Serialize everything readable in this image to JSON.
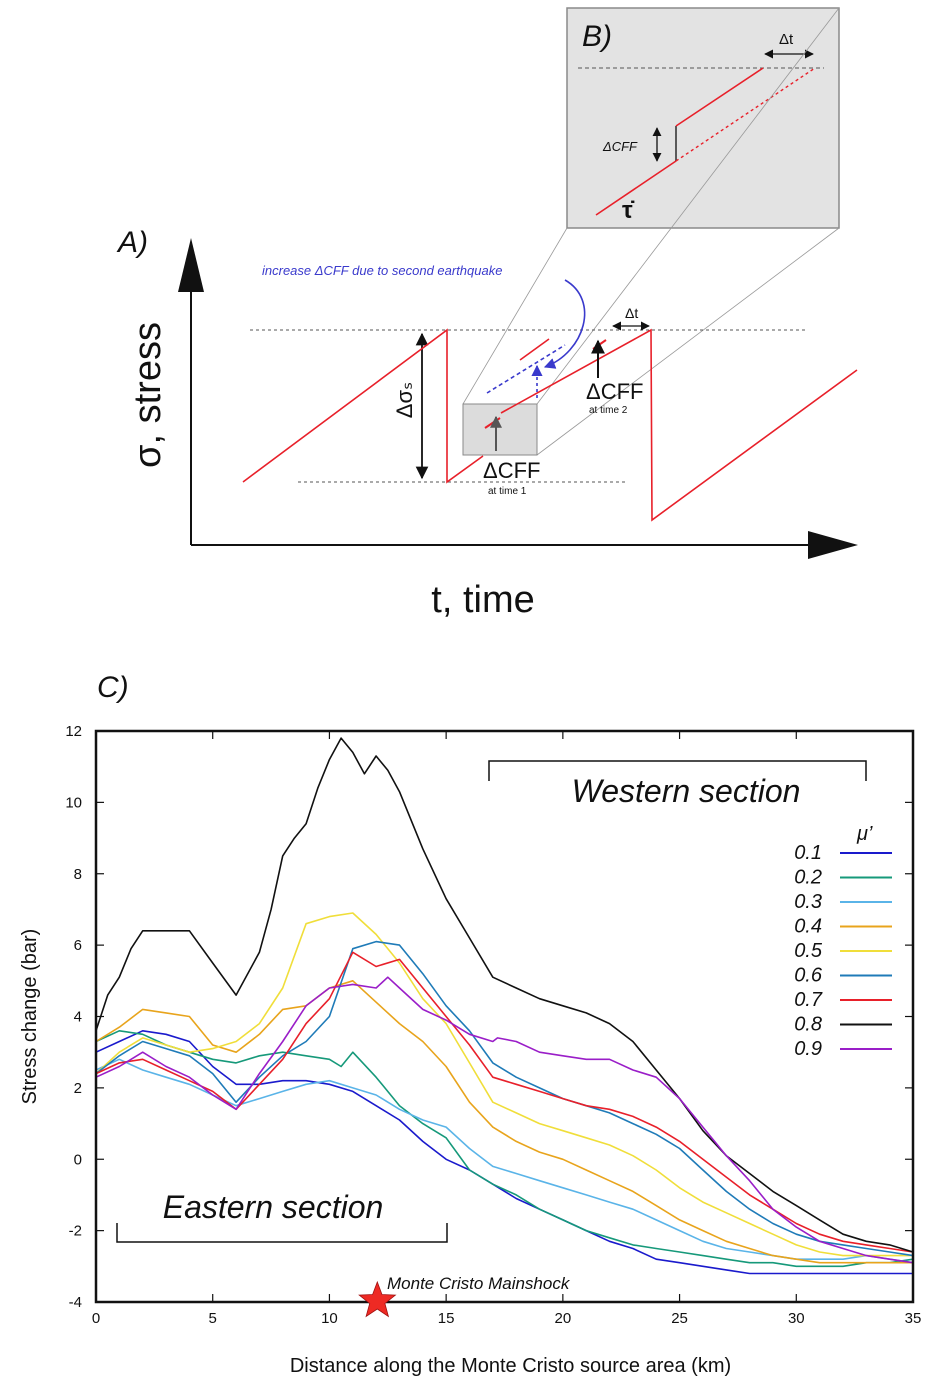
{
  "panel_a": {
    "label": "A)",
    "y_axis_label": "σ, stress",
    "x_axis_label": "t, time",
    "delta_sigma_label": "Δσₛ",
    "annotation_increase": "increase ΔCFF due to second earthquake",
    "dcff_label": "ΔCFF",
    "time1_label": "at time 1",
    "time2_label": "at time 2",
    "delta_t_label": "Δt"
  },
  "panel_b": {
    "label": "B)",
    "delta_t_label": "Δt",
    "dcff_label": "ΔCFF",
    "tau_dot_label": "τ̇"
  },
  "panel_c": {
    "label": "C)",
    "western_label": "Western section",
    "eastern_label": "Eastern section",
    "mainshock_label": "Monte Cristo Mainshock",
    "legend_title": "μ’"
  },
  "colors": {
    "sawtooth": "#e8202a",
    "annotation_blue": "#3a3acc",
    "inset_fill": "#e3e3e3",
    "star": "#ee2a24"
  },
  "chart_data": {
    "type": "line",
    "xlabel": "Distance along the Monte Cristo source area (km)",
    "ylabel": "Stress change (bar)",
    "xlim": [
      0,
      35
    ],
    "ylim": [
      -4,
      12
    ],
    "xticks": [
      0,
      5,
      10,
      15,
      20,
      25,
      30,
      35
    ],
    "yticks": [
      -4,
      -2,
      0,
      2,
      4,
      6,
      8,
      10,
      12
    ],
    "grid": false,
    "legend_position": "right",
    "series": [
      {
        "name": "0.1",
        "color": "#1a1acc",
        "x": [
          0,
          1,
          2,
          3,
          4,
          5,
          6,
          7,
          8,
          9,
          10,
          11,
          12,
          13,
          14,
          15,
          16,
          17,
          18,
          19,
          20,
          21,
          22,
          23,
          24,
          25,
          26,
          27,
          28,
          29,
          30,
          31,
          32,
          33,
          34,
          35
        ],
        "y": [
          3.0,
          3.3,
          3.6,
          3.5,
          3.3,
          2.6,
          2.1,
          2.1,
          2.2,
          2.2,
          2.1,
          1.9,
          1.5,
          1.1,
          0.5,
          0.0,
          -0.3,
          -0.7,
          -1.1,
          -1.4,
          -1.7,
          -2.0,
          -2.3,
          -2.5,
          -2.8,
          -2.9,
          -3.0,
          -3.1,
          -3.2,
          -3.2,
          -3.2,
          -3.2,
          -3.2,
          -3.2,
          -3.2,
          -3.2
        ]
      },
      {
        "name": "0.2",
        "color": "#16997a",
        "x": [
          0,
          1,
          2,
          3,
          4,
          5,
          6,
          7,
          8,
          9,
          10,
          10.5,
          11,
          12,
          13,
          14,
          15,
          16,
          17,
          18,
          19,
          20,
          21,
          22,
          23,
          24,
          25,
          26,
          27,
          28,
          29,
          30,
          31,
          32,
          33,
          34,
          35
        ],
        "y": [
          3.3,
          3.6,
          3.5,
          3.2,
          3.0,
          2.8,
          2.7,
          2.9,
          3.0,
          2.9,
          2.8,
          2.6,
          3.0,
          2.3,
          1.5,
          1.0,
          0.6,
          -0.3,
          -0.7,
          -1.0,
          -1.4,
          -1.7,
          -2.0,
          -2.2,
          -2.4,
          -2.5,
          -2.6,
          -2.7,
          -2.8,
          -2.9,
          -2.9,
          -3.0,
          -3.0,
          -3.0,
          -2.9,
          -2.9,
          -2.8
        ]
      },
      {
        "name": "0.3",
        "color": "#5ab4e8",
        "x": [
          0,
          1,
          2,
          3,
          4,
          5,
          6,
          7,
          8,
          9,
          10,
          11,
          12,
          13,
          14,
          15,
          16,
          17,
          18,
          19,
          20,
          21,
          22,
          23,
          24,
          25,
          26,
          27,
          28,
          29,
          30,
          31,
          32,
          33,
          34,
          35
        ],
        "y": [
          2.5,
          2.8,
          2.5,
          2.3,
          2.1,
          1.8,
          1.5,
          1.7,
          1.9,
          2.1,
          2.2,
          2.0,
          1.8,
          1.4,
          1.1,
          0.9,
          0.3,
          -0.2,
          -0.4,
          -0.6,
          -0.8,
          -1.0,
          -1.2,
          -1.4,
          -1.7,
          -2.0,
          -2.3,
          -2.5,
          -2.6,
          -2.7,
          -2.8,
          -2.8,
          -2.8,
          -2.7,
          -2.8,
          -2.9
        ]
      },
      {
        "name": "0.4",
        "color": "#e8a41c",
        "x": [
          0,
          1,
          2,
          3,
          4,
          5,
          6,
          7,
          8,
          9,
          10,
          11,
          12,
          13,
          14,
          15,
          16,
          17,
          18,
          19,
          20,
          21,
          22,
          23,
          24,
          25,
          26,
          27,
          28,
          29,
          30,
          31,
          32,
          33,
          34,
          35
        ],
        "y": [
          3.3,
          3.7,
          4.2,
          4.1,
          4.0,
          3.2,
          3.0,
          3.5,
          4.2,
          4.3,
          4.8,
          5.0,
          4.4,
          3.8,
          3.3,
          2.6,
          1.6,
          0.9,
          0.5,
          0.2,
          0.0,
          -0.3,
          -0.6,
          -0.9,
          -1.3,
          -1.7,
          -2.0,
          -2.3,
          -2.5,
          -2.7,
          -2.8,
          -2.9,
          -2.9,
          -2.9,
          -2.9,
          -2.9
        ]
      },
      {
        "name": "0.5",
        "color": "#f0de3a",
        "x": [
          0,
          1,
          2,
          3,
          4,
          5,
          6,
          7,
          8,
          9,
          10,
          11,
          12,
          13,
          14,
          15,
          16,
          17,
          18,
          19,
          20,
          21,
          22,
          23,
          24,
          25,
          26,
          27,
          28,
          29,
          30,
          31,
          32,
          33,
          34,
          35
        ],
        "y": [
          2.4,
          3.0,
          3.4,
          3.2,
          3.0,
          3.1,
          3.3,
          3.8,
          4.8,
          6.6,
          6.8,
          6.9,
          6.3,
          5.5,
          4.5,
          3.8,
          2.7,
          1.6,
          1.3,
          1.0,
          0.8,
          0.6,
          0.4,
          0.1,
          -0.3,
          -0.8,
          -1.2,
          -1.5,
          -1.8,
          -2.1,
          -2.4,
          -2.6,
          -2.7,
          -2.7,
          -2.7,
          -2.7
        ]
      },
      {
        "name": "0.6",
        "color": "#1f7bb8",
        "x": [
          0,
          1,
          2,
          3,
          4,
          5,
          6,
          7,
          8,
          9,
          10,
          11,
          12,
          13,
          14,
          15,
          16,
          17,
          18,
          19,
          20,
          21,
          22,
          23,
          24,
          25,
          26,
          27,
          28,
          29,
          30,
          31,
          32,
          33,
          34,
          35
        ],
        "y": [
          2.4,
          2.9,
          3.3,
          3.1,
          2.9,
          2.4,
          1.6,
          2.3,
          2.9,
          3.3,
          4.0,
          5.9,
          6.1,
          6.0,
          5.2,
          4.3,
          3.6,
          2.7,
          2.3,
          2.0,
          1.7,
          1.5,
          1.3,
          1.0,
          0.7,
          0.3,
          -0.3,
          -0.9,
          -1.4,
          -1.8,
          -2.1,
          -2.3,
          -2.4,
          -2.5,
          -2.6,
          -2.7
        ]
      },
      {
        "name": "0.7",
        "color": "#e8202a",
        "x": [
          0,
          1,
          2,
          3,
          4,
          5,
          6,
          7,
          8,
          9,
          10,
          11,
          12,
          13,
          14,
          15,
          16,
          17,
          18,
          19,
          20,
          21,
          22,
          23,
          24,
          25,
          26,
          27,
          28,
          29,
          30,
          31,
          32,
          33,
          34,
          35
        ],
        "y": [
          2.4,
          2.7,
          2.8,
          2.5,
          2.2,
          1.9,
          1.4,
          2.1,
          2.8,
          3.8,
          4.5,
          5.8,
          5.4,
          5.6,
          4.8,
          4.0,
          3.2,
          2.3,
          2.1,
          1.9,
          1.7,
          1.5,
          1.4,
          1.2,
          0.9,
          0.5,
          0.0,
          -0.5,
          -1.0,
          -1.4,
          -1.8,
          -2.1,
          -2.3,
          -2.4,
          -2.5,
          -2.6
        ]
      },
      {
        "name": "0.8",
        "color": "#111111",
        "x": [
          0,
          0.5,
          1,
          1.5,
          2,
          3,
          4,
          5,
          6,
          7,
          7.5,
          8,
          8.5,
          9,
          9.5,
          10,
          10.5,
          11,
          11.5,
          12,
          12.5,
          13,
          14,
          15,
          16,
          17,
          18,
          19,
          20,
          21,
          22,
          23,
          24,
          25,
          26,
          27,
          28,
          29,
          30,
          31,
          32,
          33,
          34,
          35
        ],
        "y": [
          3.6,
          4.6,
          5.1,
          5.9,
          6.4,
          6.4,
          6.4,
          5.5,
          4.6,
          5.8,
          7.0,
          8.5,
          9.0,
          9.4,
          10.4,
          11.2,
          11.8,
          11.4,
          10.8,
          11.3,
          10.9,
          10.3,
          8.7,
          7.3,
          6.2,
          5.1,
          4.8,
          4.5,
          4.3,
          4.1,
          3.8,
          3.3,
          2.5,
          1.7,
          0.8,
          0.1,
          -0.4,
          -0.9,
          -1.3,
          -1.7,
          -2.1,
          -2.3,
          -2.4,
          -2.6
        ]
      },
      {
        "name": "0.9",
        "color": "#9a1ec8",
        "x": [
          0,
          1,
          2,
          3,
          4,
          5,
          6,
          7,
          8,
          9,
          10,
          11,
          12,
          12.5,
          13,
          14,
          15,
          16,
          17,
          17.2,
          18,
          19,
          20,
          21,
          22,
          23,
          24,
          25,
          26,
          27,
          28,
          29,
          30,
          31,
          32,
          33,
          34,
          35
        ],
        "y": [
          2.3,
          2.6,
          3.0,
          2.6,
          2.3,
          1.8,
          1.4,
          2.4,
          3.3,
          4.3,
          4.8,
          4.9,
          4.8,
          5.1,
          4.8,
          4.2,
          3.9,
          3.5,
          3.3,
          3.4,
          3.3,
          3.0,
          2.9,
          2.8,
          2.8,
          2.5,
          2.3,
          1.7,
          0.9,
          0.1,
          -0.6,
          -1.4,
          -1.9,
          -2.3,
          -2.5,
          -2.7,
          -2.8,
          -2.9
        ]
      }
    ]
  }
}
